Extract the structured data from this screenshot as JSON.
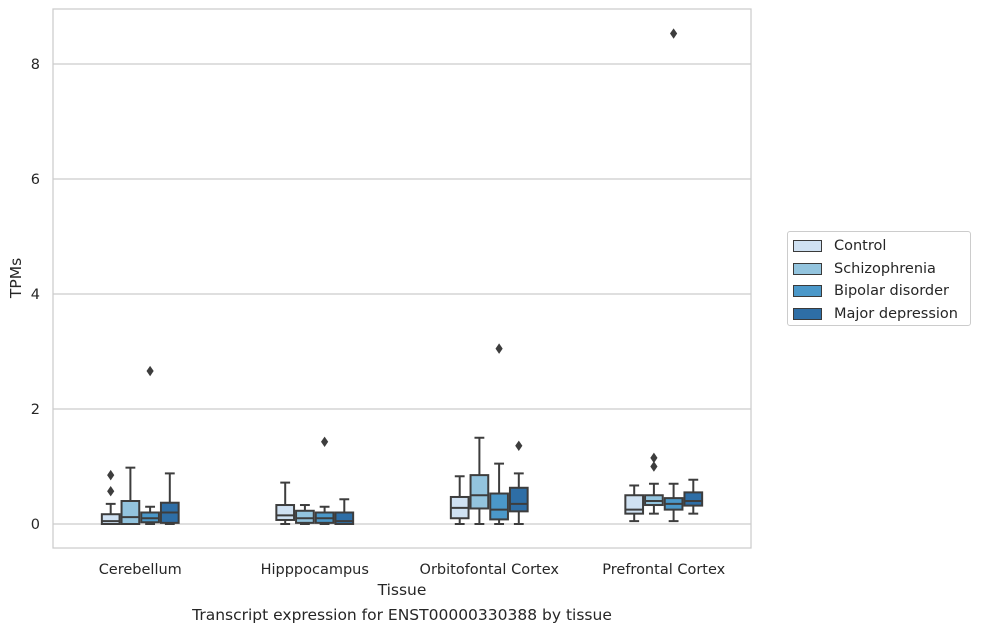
{
  "chart_data": {
    "type": "box",
    "title": "",
    "caption": "Transcript expression for ENST00000330388 by tissue",
    "xlabel": "Tissue",
    "ylabel": "TPMs",
    "ylim": [
      -0.42,
      8.95
    ],
    "yticks": [
      0,
      2,
      4,
      6,
      8
    ],
    "grid": "horizontal",
    "legend_position": "right",
    "categories": [
      "Cerebellum",
      "Hipppocampus",
      "Orbitofontal Cortex",
      "Prefrontal Cortex"
    ],
    "series": [
      {
        "name": "Control",
        "color": "#cfe1f2",
        "boxes": [
          {
            "whisker_low": 0.0,
            "q1": 0.0,
            "median": 0.05,
            "q3": 0.17,
            "whisker_high": 0.35,
            "outliers": [
              0.57,
              0.85
            ]
          },
          {
            "whisker_low": 0.0,
            "q1": 0.07,
            "median": 0.15,
            "q3": 0.33,
            "whisker_high": 0.72,
            "outliers": []
          },
          {
            "whisker_low": 0.0,
            "q1": 0.1,
            "median": 0.28,
            "q3": 0.47,
            "whisker_high": 0.83,
            "outliers": []
          },
          {
            "whisker_low": 0.05,
            "q1": 0.18,
            "median": 0.25,
            "q3": 0.5,
            "whisker_high": 0.67,
            "outliers": []
          }
        ]
      },
      {
        "name": "Schizophrenia",
        "color": "#93c4de",
        "boxes": [
          {
            "whisker_low": 0.0,
            "q1": 0.0,
            "median": 0.12,
            "q3": 0.4,
            "whisker_high": 0.98,
            "outliers": []
          },
          {
            "whisker_low": 0.0,
            "q1": 0.02,
            "median": 0.1,
            "q3": 0.23,
            "whisker_high": 0.33,
            "outliers": []
          },
          {
            "whisker_low": 0.0,
            "q1": 0.27,
            "median": 0.5,
            "q3": 0.85,
            "whisker_high": 1.5,
            "outliers": []
          },
          {
            "whisker_low": 0.18,
            "q1": 0.33,
            "median": 0.4,
            "q3": 0.5,
            "whisker_high": 0.7,
            "outliers": [
              1.0,
              1.15
            ]
          }
        ]
      },
      {
        "name": "Bipolar disorder",
        "color": "#4b98c9",
        "boxes": [
          {
            "whisker_low": 0.0,
            "q1": 0.03,
            "median": 0.1,
            "q3": 0.2,
            "whisker_high": 0.3,
            "outliers": [
              2.66
            ]
          },
          {
            "whisker_low": 0.0,
            "q1": 0.02,
            "median": 0.1,
            "q3": 0.2,
            "whisker_high": 0.3,
            "outliers": [
              1.43
            ]
          },
          {
            "whisker_low": 0.0,
            "q1": 0.08,
            "median": 0.25,
            "q3": 0.53,
            "whisker_high": 1.05,
            "outliers": [
              3.05
            ]
          },
          {
            "whisker_low": 0.05,
            "q1": 0.25,
            "median": 0.35,
            "q3": 0.45,
            "whisker_high": 0.7,
            "outliers": [
              8.53
            ]
          }
        ]
      },
      {
        "name": "Major depression",
        "color": "#2e6ea6",
        "boxes": [
          {
            "whisker_low": 0.0,
            "q1": 0.02,
            "median": 0.2,
            "q3": 0.37,
            "whisker_high": 0.88,
            "outliers": []
          },
          {
            "whisker_low": 0.0,
            "q1": 0.0,
            "median": 0.05,
            "q3": 0.2,
            "whisker_high": 0.43,
            "outliers": []
          },
          {
            "whisker_low": 0.0,
            "q1": 0.22,
            "median": 0.35,
            "q3": 0.63,
            "whisker_high": 0.88,
            "outliers": [
              1.36
            ]
          },
          {
            "whisker_low": 0.18,
            "q1": 0.32,
            "median": 0.4,
            "q3": 0.55,
            "whisker_high": 0.77,
            "outliers": []
          }
        ]
      }
    ]
  }
}
